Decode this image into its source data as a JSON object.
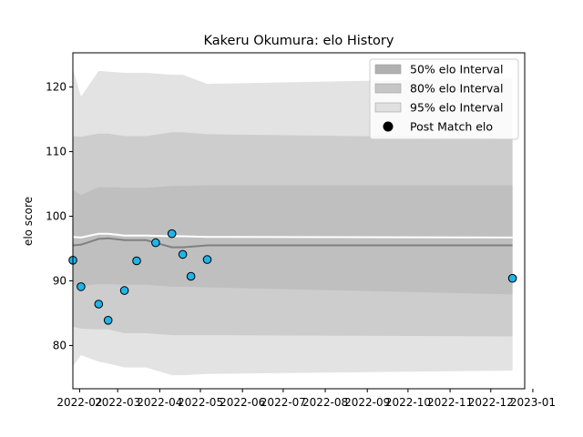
{
  "chart_data": {
    "type": "line",
    "title": "Kakeru Okumura: elo History",
    "xlabel": "",
    "ylabel": "elo score",
    "xlim": [
      "2022-01-27",
      "2022-12-26"
    ],
    "ylim": [
      73.3,
      125.3
    ],
    "x_ticks": [
      "2022-02",
      "2022-03",
      "2022-04",
      "2022-05",
      "2022-06",
      "2022-07",
      "2022-08",
      "2022-09",
      "2022-10",
      "2022-11",
      "2022-12",
      "2023-01"
    ],
    "x_tick_labels": [
      "2022-02",
      "2022-03",
      "2022-04",
      "2022-05",
      "2022-06",
      "2022-07",
      "2022-08",
      "2022-09",
      "2022-10",
      "2022-11",
      "2022-12",
      "2023-01"
    ],
    "y_ticks": [
      80,
      90,
      100,
      110,
      120
    ],
    "legend_position": "top-right",
    "legend": [
      {
        "label": "50% elo Interval",
        "color": "#b0b0b0",
        "kind": "patch"
      },
      {
        "label": "80% elo Interval",
        "color": "#c6c6c6",
        "kind": "patch"
      },
      {
        "label": "95% elo Interval",
        "color": "#e0e0e0",
        "kind": "patch"
      },
      {
        "label": "Post Match elo",
        "color": "#000000",
        "kind": "marker"
      }
    ],
    "x": [
      "2022-01-27",
      "2022-02-02",
      "2022-02-15",
      "2022-02-22",
      "2022-03-06",
      "2022-03-22",
      "2022-04-10",
      "2022-04-18",
      "2022-05-06",
      "2022-12-17"
    ],
    "bands": [
      {
        "name": "95% elo Interval",
        "color": "#e3e3e3",
        "lower": [
          76.8,
          78.5,
          77.5,
          77.2,
          76.6,
          76.6,
          75.4,
          75.4,
          75.6,
          76.1
        ],
        "upper": [
          122.8,
          118.5,
          122.5,
          122.4,
          122.2,
          122.2,
          121.9,
          121.9,
          120.5,
          121.4
        ]
      },
      {
        "name": "80% elo Interval",
        "color": "#cdcdcd",
        "lower": [
          82.9,
          82.6,
          82.5,
          82.5,
          81.9,
          81.9,
          81.6,
          81.6,
          81.6,
          81.4
        ],
        "upper": [
          112.4,
          112.3,
          112.8,
          112.8,
          112.4,
          112.4,
          113.0,
          113.0,
          112.7,
          112.1
        ]
      },
      {
        "name": "50% elo Interval",
        "color": "#bfbfbf",
        "lower": [
          89.3,
          89.2,
          89.5,
          89.5,
          89.4,
          89.4,
          89.1,
          89.1,
          89.0,
          87.9
        ],
        "upper": [
          104.1,
          103.3,
          104.5,
          104.5,
          104.4,
          104.4,
          104.7,
          104.7,
          104.8,
          104.8
        ]
      }
    ],
    "series": [
      {
        "name": "",
        "color": "#808080",
        "values": [
          95.5,
          95.6,
          96.5,
          96.6,
          96.3,
          96.3,
          95.2,
          95.2,
          95.5,
          95.5
        ]
      },
      {
        "name": "",
        "color": "#ffffff",
        "values": [
          96.8,
          96.7,
          97.3,
          97.3,
          97.0,
          97.0,
          96.9,
          96.9,
          96.8,
          96.7
        ]
      }
    ],
    "points": {
      "name": "Post Match elo",
      "fill": "#1fb5ea",
      "stroke": "#000000",
      "x": [
        "2022-01-27",
        "2022-02-02",
        "2022-02-15",
        "2022-02-22",
        "2022-03-06",
        "2022-03-15",
        "2022-03-29",
        "2022-04-10",
        "2022-04-18",
        "2022-04-24",
        "2022-05-06",
        "2022-12-17"
      ],
      "y": [
        93.2,
        89.1,
        86.4,
        83.9,
        88.5,
        93.1,
        95.9,
        97.3,
        94.1,
        90.7,
        93.3,
        90.4
      ]
    }
  }
}
